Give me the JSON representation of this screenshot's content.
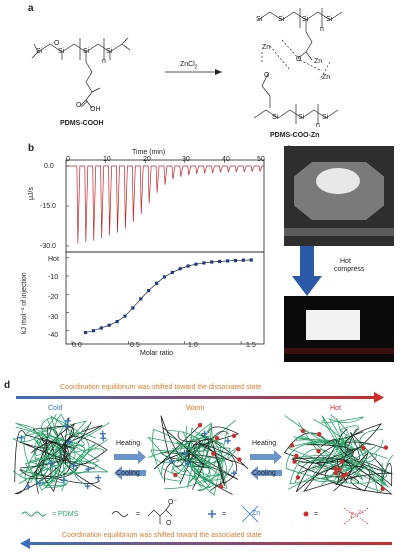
{
  "panel_a": {
    "letter": "a",
    "left_label": "PDMS-COOH",
    "reagent": "ZnCl",
    "reagent_sub": "2",
    "right_label": "PDMS-COO-Zn",
    "atoms": {
      "si": "Si",
      "o": "O",
      "n": "n",
      "oh": "OH",
      "zn": "Zn"
    }
  },
  "panel_b": {
    "letter": "b",
    "top_xlabel": "Time (min)",
    "top_xticks": [
      "0",
      "10",
      "20",
      "30",
      "40",
      "50"
    ],
    "top_ylabel": "μJ/s",
    "top_yticks": [
      "0.0",
      "-15.0",
      "-30.0"
    ],
    "bottom_xlabel": "Molar ratio",
    "bottom_xticks": [
      "0.0",
      "0.5",
      "1.0",
      "1.5"
    ],
    "bottom_ylabel": "kJ mol⁻¹ of injection",
    "bottom_yticks": [
      "Hot",
      "-10",
      "-20",
      "-30",
      "-40"
    ]
  },
  "panel_c": {
    "letter": "c",
    "arrow_label_1": "Hot",
    "arrow_label_2": "compress"
  },
  "panel_d": {
    "letter": "d",
    "top_banner": "Coordination equilibrium was shifted toward the dissociated state",
    "bottom_banner": "Coordination equilibrium was shifted toward the associated state",
    "state_cold": "Cold",
    "state_warm": "Warm",
    "state_hot": "Hot",
    "heating": "Heating",
    "cooling": "Cooling",
    "legend_pdms": "= PDMS",
    "legend_eq": "=",
    "legend_zn": "Zn",
    "legend_zn2": "Zn",
    "legend_zn2_sup": "2+",
    "legend_o": "O",
    "legend_ominus": "O⁻"
  },
  "chart_data": [
    {
      "type": "line",
      "title": "",
      "xlabel": "Time (min)",
      "ylabel": "μJ/s",
      "xlim": [
        0,
        50
      ],
      "ylim": [
        -30,
        0
      ],
      "x": [
        3,
        5,
        7,
        9,
        11,
        13,
        15,
        17,
        19,
        21,
        23,
        25,
        27,
        29,
        31,
        33,
        35,
        37,
        39,
        41,
        43,
        45,
        47,
        49
      ],
      "series": [
        {
          "values": [
            -29,
            -28.5,
            -28,
            -27,
            -26,
            -25,
            -23.5,
            -21,
            -18,
            -14,
            -10,
            -7,
            -5,
            -4,
            -3.5,
            -3,
            -2.8,
            -2.6,
            -2.4,
            -2.3,
            -2.2,
            -2.1,
            -2,
            -2
          ]
        }
      ],
      "colors": {
        "trace": "#c0262d"
      }
    },
    {
      "type": "scatter",
      "title": "",
      "xlabel": "Molar ratio",
      "ylabel": "kJ mol⁻¹ of injection",
      "xlim": [
        0,
        1.65
      ],
      "ylim": [
        -44,
        1
      ],
      "x": [
        0.12,
        0.19,
        0.26,
        0.33,
        0.4,
        0.47,
        0.54,
        0.61,
        0.68,
        0.75,
        0.82,
        0.89,
        0.96,
        1.03,
        1.1,
        1.17,
        1.24,
        1.31,
        1.38,
        1.45,
        1.52,
        1.59
      ],
      "series": [
        {
          "values": [
            -41,
            -40,
            -38.5,
            -37,
            -35,
            -32,
            -27.5,
            -22.5,
            -18,
            -14,
            -10.5,
            -8,
            -6,
            -4.5,
            -3.5,
            -2.8,
            -2.3,
            -2,
            -1.7,
            -1.5,
            -1.3,
            -1.2
          ]
        }
      ],
      "colors": {
        "marker": "#1f3c88",
        "fit": "#222222"
      }
    }
  ]
}
